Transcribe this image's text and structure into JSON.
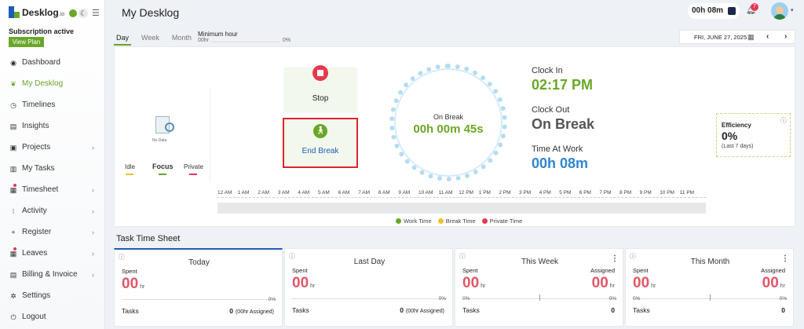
{
  "app": {
    "logo_text": "Desklog",
    "logo_suffix": ".io",
    "subscription": "Subscription active",
    "view_plan": "View Plan"
  },
  "sidebar": {
    "items": [
      {
        "label": "Dashboard",
        "icon": "palette-icon"
      },
      {
        "label": "My Desklog",
        "icon": "leaf-icon",
        "active": true
      },
      {
        "label": "Timelines",
        "icon": "clock-icon"
      },
      {
        "label": "Insights",
        "icon": "book-icon"
      },
      {
        "label": "Projects",
        "icon": "briefcase-icon",
        "chevron": true
      },
      {
        "label": "My Tasks",
        "icon": "tasks-icon"
      },
      {
        "label": "Timesheet",
        "icon": "calendar-icon",
        "chevron": true,
        "badge": true
      },
      {
        "label": "Activity",
        "icon": "grid-icon",
        "chevron": true
      },
      {
        "label": "Register",
        "icon": "plus-icon",
        "chevron": true
      },
      {
        "label": "Leaves",
        "icon": "calendar-icon",
        "chevron": true,
        "badge": true
      },
      {
        "label": "Billing & Invoice",
        "icon": "invoice-icon",
        "chevron": true
      },
      {
        "label": "Settings",
        "icon": "gear-icon"
      },
      {
        "label": "Logout",
        "icon": "power-icon"
      }
    ]
  },
  "header": {
    "title": "My Desklog",
    "timer": "00h 08m",
    "notifications": "7"
  },
  "tabs": [
    {
      "label": "Day",
      "active": true
    },
    {
      "label": "Week"
    },
    {
      "label": "Month"
    }
  ],
  "min_hour": {
    "label": "Minimum hour",
    "left": "00hr",
    "right": "0%"
  },
  "date": {
    "label": "FRI, JUNE 27, 2025"
  },
  "nodata": {
    "label": "No Data"
  },
  "stats": {
    "idle": "Idle",
    "focus": "Focus",
    "private": "Private"
  },
  "controls": {
    "stop": "Stop",
    "end_break": "End Break"
  },
  "ring": {
    "status": "On Break",
    "time": "00h 00m 45s"
  },
  "clock": {
    "in_label": "Clock In",
    "in_value": "02:17 PM",
    "out_label": "Clock Out",
    "out_value": "On Break",
    "work_label": "Time At Work",
    "work_value": "00h 08m"
  },
  "efficiency": {
    "title": "Efficiency",
    "value": "0%",
    "sub": "(Last 7 days)"
  },
  "timeline_hours": [
    "12 AM",
    "1 AM",
    "2 AM",
    "3 AM",
    "4 AM",
    "5 AM",
    "6 AM",
    "7 AM",
    "8 AM",
    "9 AM",
    "10 AM",
    "11 AM",
    "12 PM",
    "1 PM",
    "2 PM",
    "3 PM",
    "4 PM",
    "5 PM",
    "6 PM",
    "7 PM",
    "8 PM",
    "9 PM",
    "10 PM",
    "11 PM"
  ],
  "legend": [
    {
      "label": "Work Time",
      "color": "#6aa728"
    },
    {
      "label": "Break Time",
      "color": "#f2c12e"
    },
    {
      "label": "Private Time",
      "color": "#e53950"
    }
  ],
  "colors": {
    "accent": "#6aa728",
    "danger": "#e53950",
    "blue": "#2f86d1"
  },
  "task_sheet": {
    "title": "Task Time Sheet",
    "cards": [
      {
        "head": "Today",
        "spent_label": "Spent",
        "spent": "00",
        "unit": "hr",
        "pct": "0%",
        "tasks_label": "Tasks",
        "tasks": "0",
        "tasks_note": "(00hr Assigned)"
      },
      {
        "head": "Last Day",
        "spent_label": "Spent",
        "spent": "00",
        "unit": "hr",
        "pct": "0%",
        "tasks_label": "Tasks",
        "tasks": "0",
        "tasks_note": "(00hr Assigned)"
      },
      {
        "head": "This Week",
        "spent_label": "Spent",
        "spent": "00",
        "unit": "hr",
        "assigned_label": "Assigned",
        "assigned": "00",
        "pct_l": "0%",
        "pct": "0%",
        "tasks_label": "Tasks",
        "tasks": "0"
      },
      {
        "head": "This Month",
        "spent_label": "Spent",
        "spent": "00",
        "unit": "hr",
        "assigned_label": "Assigned",
        "assigned": "00",
        "pct_l": "0%",
        "pct": "0%",
        "tasks_label": "Tasks",
        "tasks": "0"
      }
    ]
  }
}
